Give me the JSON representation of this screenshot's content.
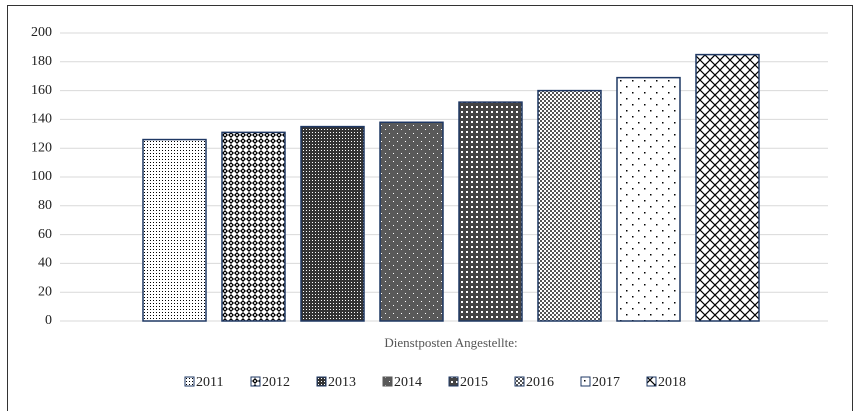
{
  "chart_data": {
    "type": "bar",
    "categories": [
      "Dienstposten Angestellte:"
    ],
    "series": [
      {
        "name": "2011",
        "color": "#000000",
        "pattern": "fine-dots",
        "values": [
          126
        ]
      },
      {
        "name": "2012",
        "color": "#000000",
        "pattern": "diamonds",
        "values": [
          131
        ]
      },
      {
        "name": "2013",
        "color": "#000000",
        "pattern": "dense-grid",
        "values": [
          135
        ]
      },
      {
        "name": "2014",
        "color": "#595959",
        "pattern": "dark-dots",
        "values": [
          138
        ]
      },
      {
        "name": "2015",
        "color": "#000000",
        "pattern": "weave",
        "values": [
          152
        ]
      },
      {
        "name": "2016",
        "color": "#000000",
        "pattern": "checker",
        "values": [
          160
        ]
      },
      {
        "name": "2017",
        "color": "#000000",
        "pattern": "sparse-dots",
        "values": [
          169
        ]
      },
      {
        "name": "2018",
        "color": "#000000",
        "pattern": "crosshatch",
        "values": [
          185
        ]
      }
    ],
    "ylim": [
      0,
      200
    ],
    "yticks": [
      0,
      20,
      40,
      60,
      80,
      100,
      120,
      140,
      160,
      180,
      200
    ],
    "grid": true,
    "legend": "bottom"
  }
}
